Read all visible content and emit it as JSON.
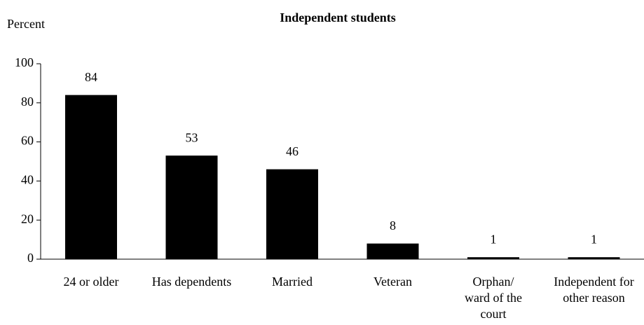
{
  "chart_data": {
    "type": "bar",
    "title": "Independent students",
    "y_label": "Percent",
    "categories": [
      "24 or older",
      "Has dependents",
      "Married",
      "Veteran",
      "Orphan/\nward of the\ncourt",
      "Independent for\nother reason"
    ],
    "values": [
      84,
      53,
      46,
      8,
      1,
      1
    ],
    "color": "#000000",
    "ylim": [
      0,
      100
    ],
    "yticks": [
      0,
      20,
      40,
      60,
      80,
      100
    ],
    "grid": false
  }
}
